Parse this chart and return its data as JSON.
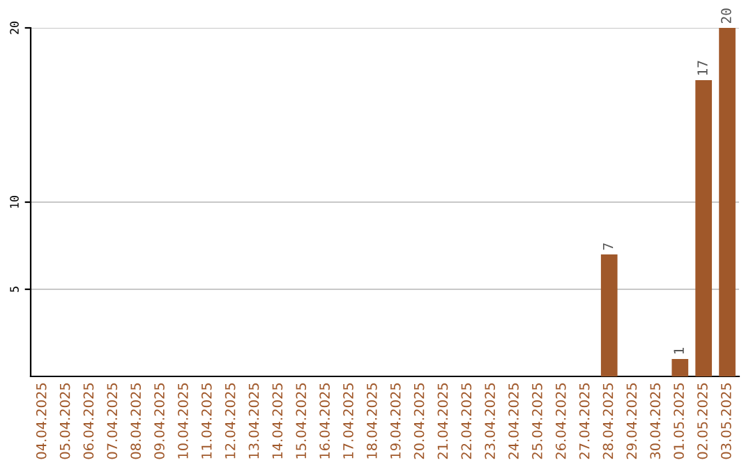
{
  "chart_data": {
    "type": "bar",
    "categories": [
      "04.04.2025",
      "05.04.2025",
      "06.04.2025",
      "07.04.2025",
      "08.04.2025",
      "09.04.2025",
      "10.04.2025",
      "11.04.2025",
      "12.04.2025",
      "13.04.2025",
      "14.04.2025",
      "15.04.2025",
      "16.04.2025",
      "17.04.2025",
      "18.04.2025",
      "19.04.2025",
      "20.04.2025",
      "21.04.2025",
      "22.04.2025",
      "23.04.2025",
      "24.04.2025",
      "25.04.2025",
      "26.04.2025",
      "27.04.2025",
      "28.04.2025",
      "29.04.2025",
      "30.04.2025",
      "01.05.2025",
      "02.05.2025",
      "03.05.2025"
    ],
    "values": [
      0,
      0,
      0,
      0,
      0,
      0,
      0,
      0,
      0,
      0,
      0,
      0,
      0,
      0,
      0,
      0,
      0,
      0,
      0,
      0,
      0,
      0,
      0,
      0,
      7,
      0,
      0,
      1,
      17,
      20
    ],
    "value_labels": [
      null,
      null,
      null,
      null,
      null,
      null,
      null,
      null,
      null,
      null,
      null,
      null,
      null,
      null,
      null,
      null,
      null,
      null,
      null,
      null,
      null,
      null,
      null,
      null,
      "7",
      null,
      null,
      "1",
      "17",
      "20"
    ],
    "color": "#a0582a",
    "ylim": [
      0,
      20
    ],
    "yticks": [
      5,
      10,
      20
    ],
    "grid": "y"
  }
}
